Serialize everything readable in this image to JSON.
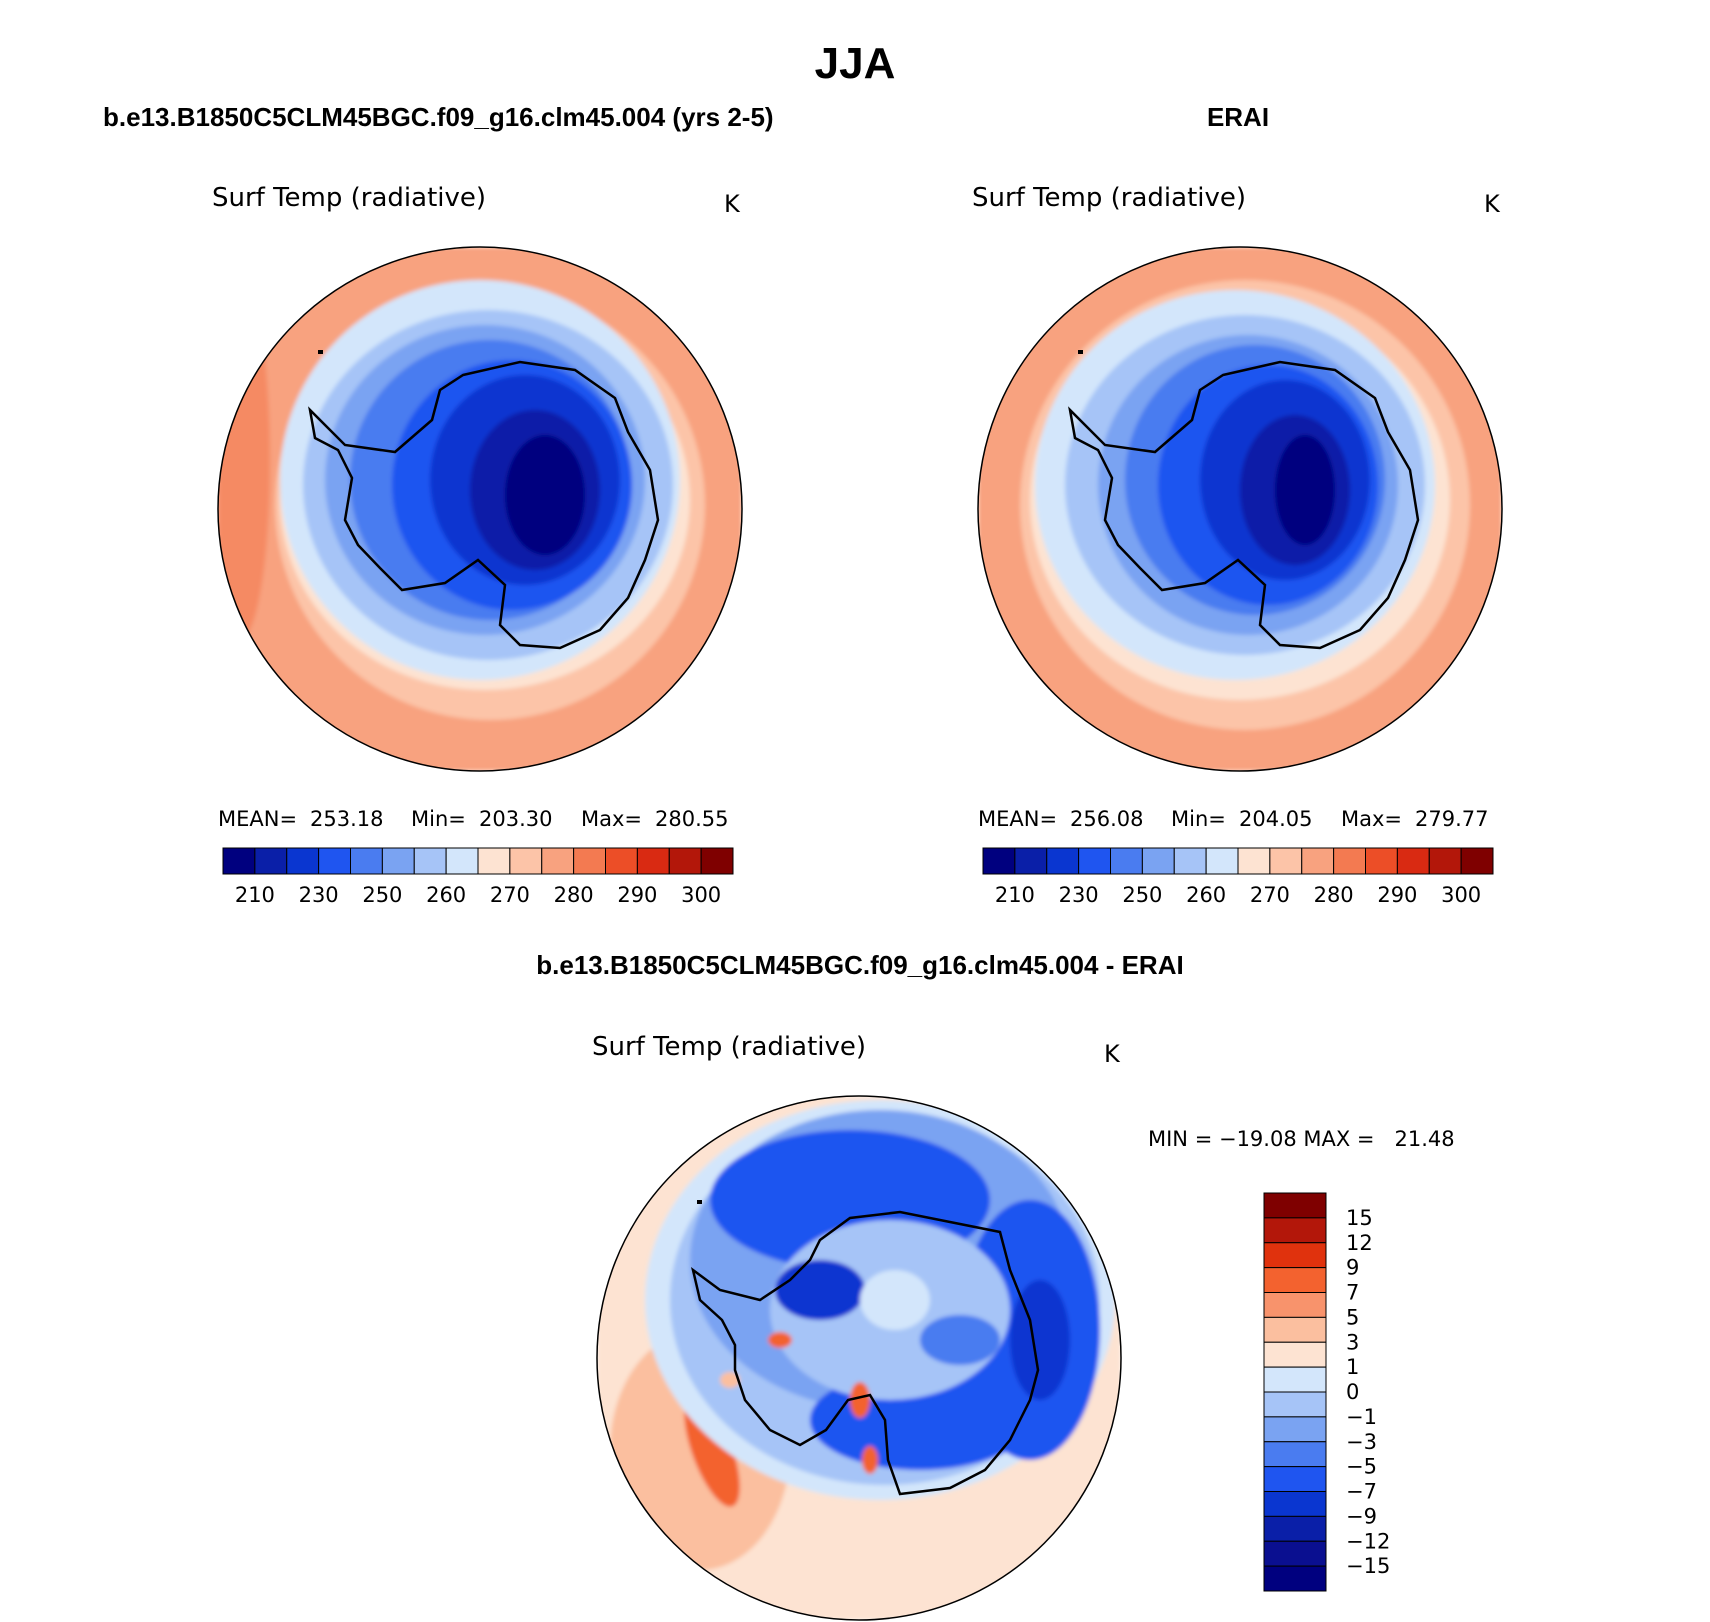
{
  "page_title": "JJA",
  "panels": [
    {
      "header": "b.e13.B1850C5CLM45BGC.f09_g16.clm45.004 (yrs 2-5)",
      "variable": "Surf Temp (radiative)",
      "units": "K",
      "stats": {
        "mean_label": "MEAN=",
        "mean": "253.18",
        "min_label": "Min=",
        "min": "203.30",
        "max_label": "Max=",
        "max": "280.55"
      },
      "colorbar": {
        "ticks": [
          "210",
          "230",
          "250",
          "260",
          "270",
          "280",
          "290",
          "300"
        ]
      }
    },
    {
      "header": "ERAI",
      "variable": "Surf Temp (radiative)",
      "units": "K",
      "stats": {
        "mean_label": "MEAN=",
        "mean": "256.08",
        "min_label": "Min=",
        "min": "204.05",
        "max_label": "Max=",
        "max": "279.77"
      },
      "colorbar": {
        "ticks": [
          "210",
          "230",
          "250",
          "260",
          "270",
          "280",
          "290",
          "300"
        ]
      }
    },
    {
      "header": "b.e13.B1850C5CLM45BGC.f09_g16.clm45.004 - ERAI",
      "variable": "Surf Temp (radiative)",
      "units": "K",
      "stats": {
        "text": "MIN = −19.08 MAX =   21.48"
      },
      "colorbar": {
        "ticks": [
          "15",
          "12",
          "9",
          "7",
          "5",
          "3",
          "1",
          "0",
          "−1",
          "−3",
          "−5",
          "−7",
          "−9",
          "−12",
          "−15"
        ]
      }
    }
  ],
  "colors": {
    "abs_scale": [
      "#00007f",
      "#0a1fa8",
      "#0a36d0",
      "#1f55f0",
      "#4a7cf0",
      "#7aa3f2",
      "#a6c4f7",
      "#d3e6fb",
      "#fde3d2",
      "#fcc4a8",
      "#f8a27f",
      "#f37a51",
      "#ec4e27",
      "#d92a12",
      "#b3170a",
      "#7f0000"
    ],
    "diff_scale": [
      "#7f0000",
      "#b3170a",
      "#e0320d",
      "#f3622f",
      "#f8936c",
      "#fbbf9f",
      "#fde3d2",
      "#d3e6fb",
      "#a6c4f7",
      "#7aa3f2",
      "#4a7cf0",
      "#1f55f0",
      "#0a36d0",
      "#0a1fa8",
      "#0a0f90",
      "#00007f"
    ]
  }
}
